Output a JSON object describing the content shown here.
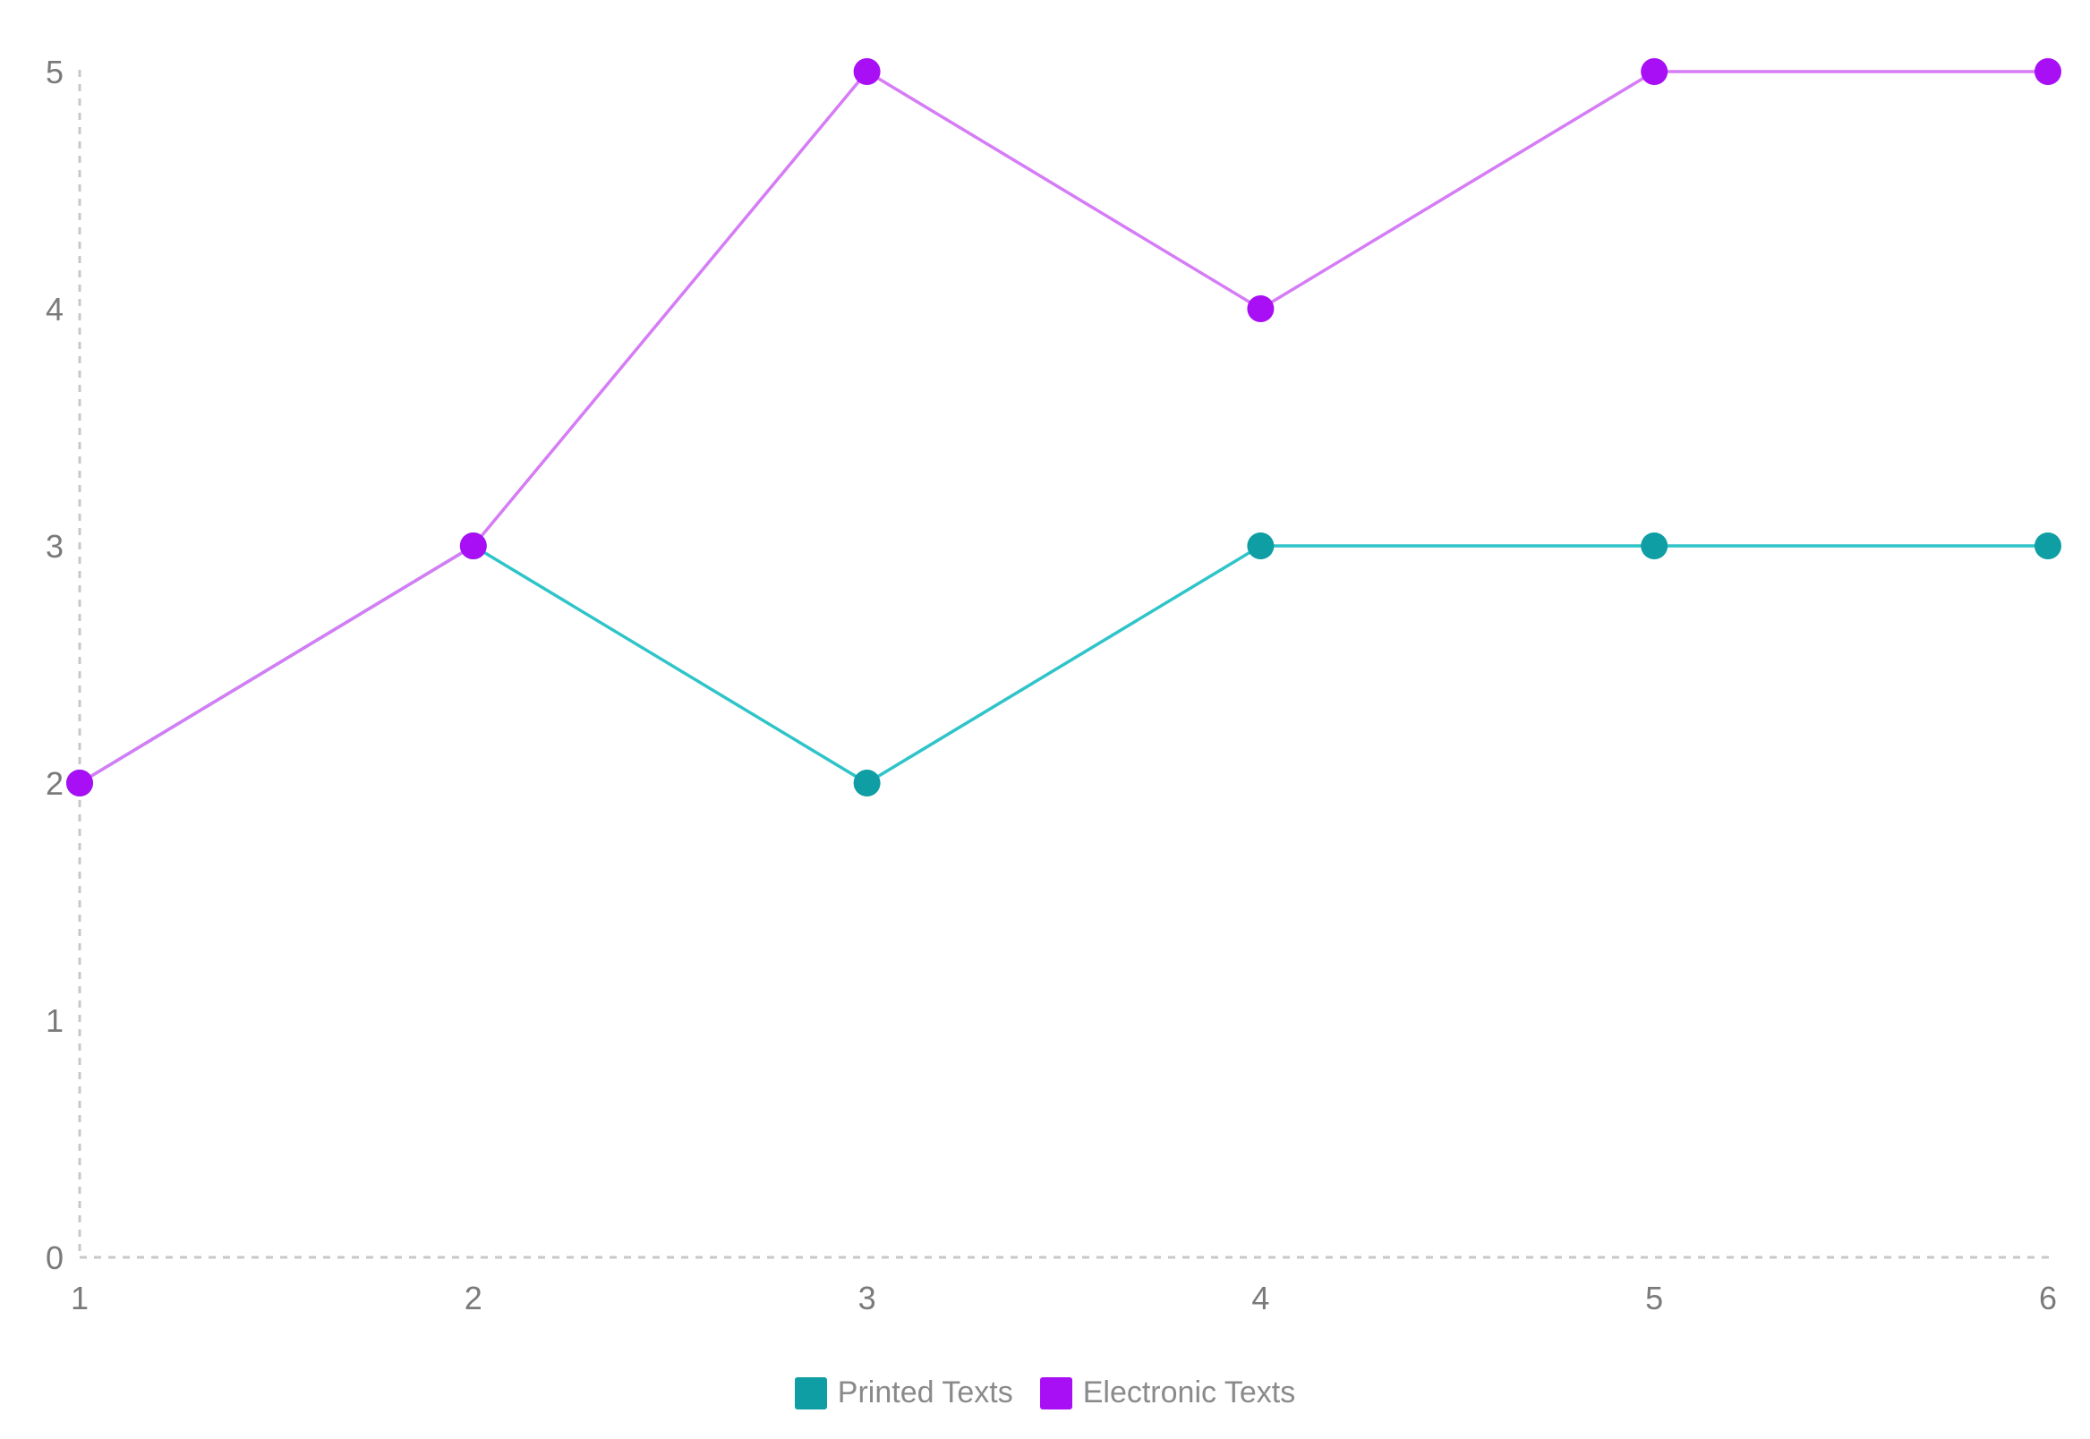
{
  "chart_data": {
    "type": "line",
    "x": [
      1,
      2,
      3,
      4,
      5,
      6
    ],
    "series": [
      {
        "name": "Printed Texts",
        "values": [
          2,
          3,
          2,
          3,
          3,
          3
        ],
        "line_color": "#2ec4c9",
        "marker_color": "#0e9ea3"
      },
      {
        "name": "Electronic Texts",
        "values": [
          2,
          3,
          5,
          4,
          5,
          5
        ],
        "line_color": "#d57cf6",
        "marker_color": "#a80ff5"
      }
    ],
    "xticks": [
      "1",
      "2",
      "3",
      "4",
      "5",
      "6"
    ],
    "yticks": [
      "0",
      "1",
      "2",
      "3",
      "4",
      "5"
    ],
    "xlim": [
      1,
      6
    ],
    "ylim": [
      0,
      5
    ],
    "grid": false,
    "axis_style": "dashed",
    "axis_color": "#c8c8c8",
    "legend_position": "bottom-center"
  },
  "legend": {
    "items": [
      {
        "label": "Printed Texts",
        "color": "#0e9ea3"
      },
      {
        "label": "Electronic Texts",
        "color": "#a80ff5"
      }
    ]
  }
}
